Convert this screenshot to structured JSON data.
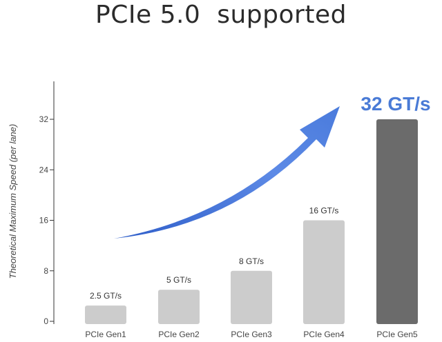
{
  "title": "PCIe 5.0  supported",
  "chart_data": {
    "type": "bar",
    "ylabel": "Theoretical Maximum Speed (per lane)",
    "xlabel": "",
    "categories": [
      "PCIe Gen1",
      "PCIe Gen2",
      "PCIe Gen3",
      "PCIe Gen4",
      "PCIe Gen5"
    ],
    "values": [
      2.5,
      5,
      8,
      16,
      32
    ],
    "data_labels": [
      "2.5 GT/s",
      "5 GT/s",
      "8 GT/s",
      "16 GT/s",
      "32 GT/s"
    ],
    "yticks": [
      0,
      8,
      16,
      24,
      32
    ],
    "ytick_labels": [
      "0",
      "8",
      "16",
      "24",
      "32"
    ],
    "ylim": [
      0,
      38
    ],
    "grid": false,
    "colors": {
      "bar": "#cccccc",
      "highlight_bar": "#6b6b6b",
      "highlight_label": "#4a7bd6",
      "arrow": "#3f6fd9"
    }
  }
}
